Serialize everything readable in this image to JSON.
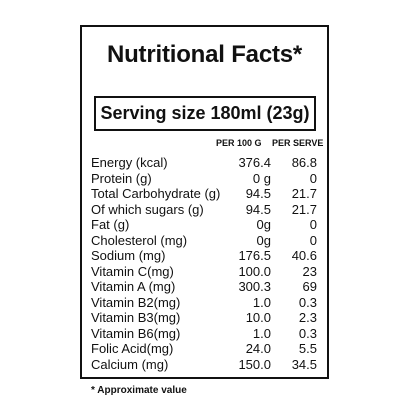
{
  "label": {
    "title": "Nutritional Facts*",
    "serving": "Serving size 180ml (23g)",
    "columns": [
      "PER 100 G",
      "PER SERVE"
    ],
    "rows": [
      {
        "name": "Energy (kcal)",
        "per100": "376.4",
        "perServe": "86.8"
      },
      {
        "name": "Protein (g)",
        "per100": "0 g",
        "perServe": "0"
      },
      {
        "name": "Total Carbohydrate (g)",
        "per100": "94.5",
        "perServe": "21.7"
      },
      {
        "name": "Of which sugars (g)",
        "per100": "94.5",
        "perServe": "21.7"
      },
      {
        "name": "Fat (g)",
        "per100": "0g",
        "perServe": "0"
      },
      {
        "name": "Cholesterol (mg)",
        "per100": "0g",
        "perServe": "0"
      },
      {
        "name": "Sodium (mg)",
        "per100": "176.5",
        "perServe": "40.6"
      },
      {
        "name": "Vitamin C(mg)",
        "per100": "100.0",
        "perServe": "23"
      },
      {
        "name": "Vitamin A (mg)",
        "per100": "300.3",
        "perServe": "69"
      },
      {
        "name": "Vitamin B2(mg)",
        "per100": "1.0",
        "perServe": "0.3"
      },
      {
        "name": "Vitamin B3(mg)",
        "per100": "10.0",
        "perServe": "2.3"
      },
      {
        "name": "Vitamin B6(mg)",
        "per100": "1.0",
        "perServe": "0.3"
      },
      {
        "name": "Folic Acid(mg)",
        "per100": "24.0",
        "perServe": "5.5"
      },
      {
        "name": "Calcium (mg)",
        "per100": "150.0",
        "perServe": "34.5"
      }
    ],
    "footnote": "* Approximate value"
  }
}
